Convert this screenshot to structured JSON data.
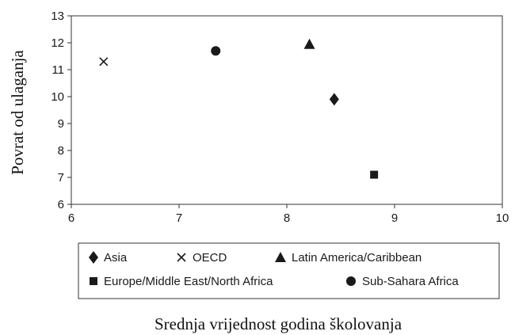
{
  "chart_data": {
    "type": "scatter",
    "xlabel": "Srednja vrijednost godina školovanja",
    "ylabel": "Povrat od ulaganja",
    "xlim": [
      6,
      10
    ],
    "ylim": [
      6,
      13
    ],
    "xticks": [
      "6",
      "7",
      "8",
      "9",
      "10"
    ],
    "yticks": [
      "6",
      "7",
      "8",
      "9",
      "10",
      "11",
      "12",
      "13"
    ],
    "grid": false,
    "legend_position": "bottom",
    "series": [
      {
        "name": "Asia",
        "marker": "diamond",
        "x": [
          8.44
        ],
        "y": [
          9.9
        ]
      },
      {
        "name": "OECD",
        "marker": "x",
        "x": [
          6.3
        ],
        "y": [
          11.3
        ]
      },
      {
        "name": "Latin America/Caribbean",
        "marker": "triangle",
        "x": [
          8.21
        ],
        "y": [
          11.95
        ]
      },
      {
        "name": "Europe/Middle East/North Africa",
        "marker": "square",
        "x": [
          8.81
        ],
        "y": [
          7.1
        ]
      },
      {
        "name": "Sub-Sahara Africa",
        "marker": "circle",
        "x": [
          7.34
        ],
        "y": [
          11.7
        ]
      }
    ],
    "marker_color": "#1a1a1a"
  }
}
